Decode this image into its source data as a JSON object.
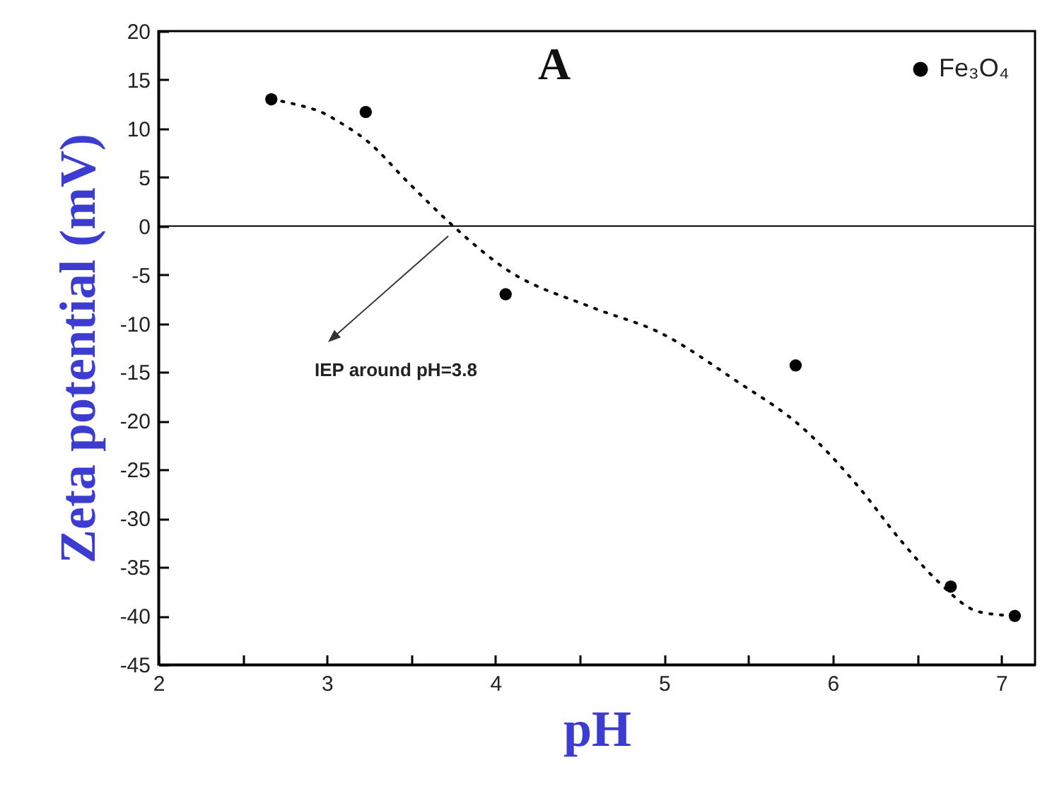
{
  "chart_data": {
    "type": "scatter",
    "title": "A",
    "xlabel": "pH",
    "ylabel": "Zeta potential (mV)",
    "x": [
      2.67,
      3.23,
      4.06,
      5.78,
      6.7,
      7.08
    ],
    "series": [
      {
        "name": "Fe₃O₄",
        "color": "#000000",
        "marker": "circle",
        "values": [
          13,
          11.7,
          -7,
          -14.3,
          -37,
          -40
        ]
      },
      {
        "type": "line",
        "color": "#000000",
        "line_style": "dotted",
        "marker": "none",
        "x": [
          2.67,
          2.81,
          2.99,
          3.07,
          3.24,
          3.48,
          3.73,
          4.06,
          4.58,
          4.97,
          5.42,
          5.84,
          6.15,
          6.41,
          6.62,
          6.87,
          7.08
        ],
        "values": [
          13,
          12.5,
          11.5,
          10.7,
          8.7,
          4.5,
          0.3,
          -4.4,
          -8.4,
          -10.9,
          -15.8,
          -21,
          -26.7,
          -32.4,
          -36.4,
          -39.6,
          -40
        ]
      }
    ],
    "legend": "top right",
    "grid": false,
    "ref_lines": [
      {
        "axis": "y",
        "value": 0,
        "color": "#000000"
      }
    ],
    "annotations": [
      "IEP around pH=3.8"
    ],
    "xlim": [
      2,
      7.2
    ],
    "xticks": [
      2,
      {
        "value": 2.5,
        "label": null
      },
      3,
      {
        "value": 3.5,
        "label": null
      },
      4,
      {
        "value": 4.5,
        "label": null
      },
      5,
      {
        "value": 5.5,
        "label": null
      },
      6,
      {
        "value": 6.5,
        "label": null
      },
      7
    ],
    "ylim": [
      -45,
      20
    ],
    "yticks": [
      -45,
      -40,
      -35,
      -30,
      -25,
      -20,
      -15,
      -10,
      -5,
      0,
      5,
      10,
      15,
      20
    ]
  }
}
